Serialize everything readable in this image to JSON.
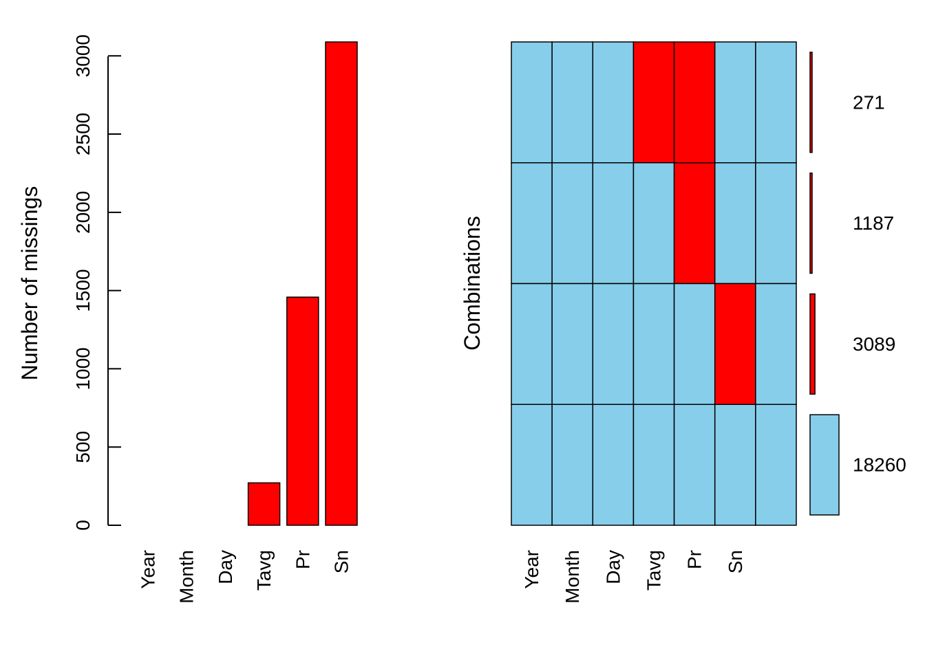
{
  "colors": {
    "missing": "#ff0000",
    "observed": "#87ceeb",
    "stroke": "#000000"
  },
  "chart_data": [
    {
      "type": "bar",
      "ylabel": "Number of missings",
      "categories": [
        "Year",
        "Month",
        "Day",
        "Tavg",
        "Pr",
        "Sn",
        ""
      ],
      "values": [
        0,
        0,
        0,
        271,
        1458,
        3089,
        0
      ],
      "ylim": [
        0,
        3089
      ],
      "yticks": [
        0,
        500,
        1000,
        1500,
        2000,
        2500,
        3000
      ],
      "ytick_labels": [
        "0",
        "500",
        "1000",
        "1500",
        "2000",
        "2500",
        "3000"
      ],
      "grid": false
    },
    {
      "type": "heatmap",
      "ylabel": "Combinations",
      "variables": [
        "Year",
        "Month",
        "Day",
        "Tavg",
        "Pr",
        "Sn",
        ""
      ],
      "combinations": [
        {
          "missing": [
            false,
            false,
            false,
            true,
            true,
            false,
            false
          ],
          "count": 271,
          "count_label": "271"
        },
        {
          "missing": [
            false,
            false,
            false,
            false,
            true,
            false,
            false
          ],
          "count": 1187,
          "count_label": "1187"
        },
        {
          "missing": [
            false,
            false,
            false,
            false,
            false,
            true,
            false
          ],
          "count": 3089,
          "count_label": "3089"
        },
        {
          "missing": [
            false,
            false,
            false,
            false,
            false,
            false,
            false
          ],
          "count": 18260,
          "count_label": "18260"
        }
      ]
    }
  ]
}
